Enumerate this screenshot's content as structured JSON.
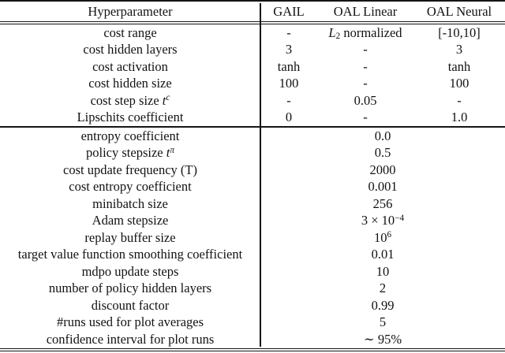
{
  "colors": {
    "background": "#ffffff",
    "text": "#121212",
    "rule": "#151515"
  },
  "table": {
    "header": [
      "Hyperparameter",
      "GAIL",
      "OAL Linear",
      "OAL Neural"
    ],
    "section1_rows": [
      {
        "param": [
          {
            "t": "cost range"
          }
        ],
        "gail": [
          {
            "t": "-"
          }
        ],
        "linear": [
          {
            "t": "L",
            "v": "i"
          },
          {
            "t": "2",
            "v": "sub"
          },
          {
            "t": " normalized"
          }
        ],
        "neural": [
          {
            "t": "[-10,10]"
          }
        ]
      },
      {
        "param": [
          {
            "t": "cost hidden layers"
          }
        ],
        "gail": [
          {
            "t": "3"
          }
        ],
        "linear": [
          {
            "t": "-"
          }
        ],
        "neural": [
          {
            "t": "3"
          }
        ]
      },
      {
        "param": [
          {
            "t": "cost activation"
          }
        ],
        "gail": [
          {
            "t": "tanh"
          }
        ],
        "linear": [
          {
            "t": "-"
          }
        ],
        "neural": [
          {
            "t": "tanh"
          }
        ]
      },
      {
        "param": [
          {
            "t": "cost hidden size"
          }
        ],
        "gail": [
          {
            "t": "100"
          }
        ],
        "linear": [
          {
            "t": "-"
          }
        ],
        "neural": [
          {
            "t": "100"
          }
        ]
      },
      {
        "param": [
          {
            "t": "cost step size "
          },
          {
            "t": "t",
            "v": "i"
          },
          {
            "t": "c",
            "v": "supi"
          }
        ],
        "gail": [
          {
            "t": "-"
          }
        ],
        "linear": [
          {
            "t": "0.05"
          }
        ],
        "neural": [
          {
            "t": "-"
          }
        ]
      },
      {
        "param": [
          {
            "t": "Lipschits coefficient"
          }
        ],
        "gail": [
          {
            "t": "0"
          }
        ],
        "linear": [
          {
            "t": "-"
          }
        ],
        "neural": [
          {
            "t": "1.0"
          }
        ]
      }
    ],
    "section2_rows": [
      {
        "param": [
          {
            "t": "entropy coefficient"
          }
        ],
        "value": [
          {
            "t": "0.0"
          }
        ]
      },
      {
        "param": [
          {
            "t": "policy stepsize "
          },
          {
            "t": "t",
            "v": "i"
          },
          {
            "t": "π",
            "v": "supi"
          }
        ],
        "value": [
          {
            "t": "0.5"
          }
        ]
      },
      {
        "param": [
          {
            "t": "cost update frequency (T)"
          }
        ],
        "value": [
          {
            "t": "2000"
          }
        ]
      },
      {
        "param": [
          {
            "t": "cost entropy coefficient"
          }
        ],
        "value": [
          {
            "t": "0.001"
          }
        ]
      },
      {
        "param": [
          {
            "t": "minibatch size"
          }
        ],
        "value": [
          {
            "t": "256"
          }
        ]
      },
      {
        "param": [
          {
            "t": "Adam stepsize"
          }
        ],
        "value": [
          {
            "t": "3 × 10"
          },
          {
            "t": "−4",
            "v": "sup"
          }
        ]
      },
      {
        "param": [
          {
            "t": "replay buffer size"
          }
        ],
        "value": [
          {
            "t": "10"
          },
          {
            "t": "6",
            "v": "sup"
          }
        ]
      },
      {
        "param": [
          {
            "t": "target value function smoothing coefficient"
          }
        ],
        "value": [
          {
            "t": "0.01"
          }
        ]
      },
      {
        "param": [
          {
            "t": "mdpo update steps"
          }
        ],
        "value": [
          {
            "t": "10"
          }
        ]
      },
      {
        "param": [
          {
            "t": "number of policy hidden layers"
          }
        ],
        "value": [
          {
            "t": "2"
          }
        ]
      },
      {
        "param": [
          {
            "t": "discount factor"
          }
        ],
        "value": [
          {
            "t": "0.99"
          }
        ]
      },
      {
        "param": [
          {
            "t": "#runs used for plot averages"
          }
        ],
        "value": [
          {
            "t": "5"
          }
        ]
      },
      {
        "param": [
          {
            "t": "confidence interval for plot runs"
          }
        ],
        "value": [
          {
            "t": "∼ 95%"
          }
        ]
      }
    ]
  }
}
